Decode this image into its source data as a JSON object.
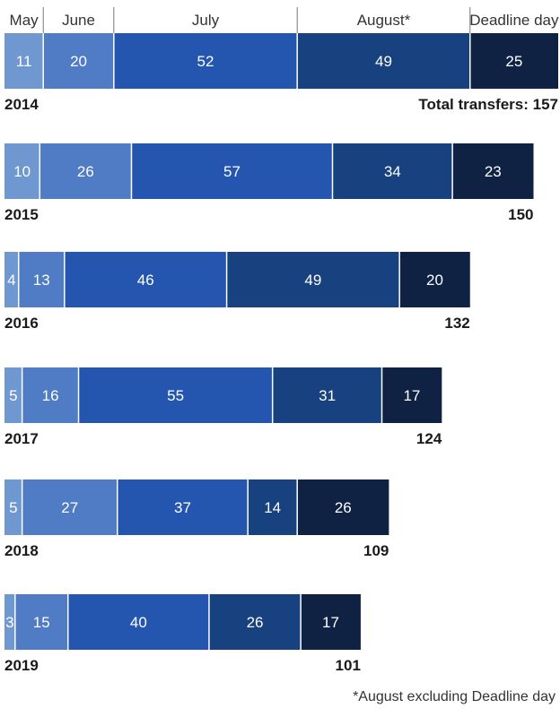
{
  "chart_data": {
    "type": "bar",
    "orientation": "horizontal",
    "stacked": true,
    "categories": [
      "2014",
      "2015",
      "2016",
      "2017",
      "2018",
      "2019"
    ],
    "series": [
      {
        "name": "May",
        "values": [
          11,
          10,
          4,
          5,
          5,
          3
        ],
        "color": "#6f98d1"
      },
      {
        "name": "June",
        "values": [
          20,
          26,
          13,
          16,
          27,
          15
        ],
        "color": "#4f7cc4"
      },
      {
        "name": "July",
        "values": [
          52,
          57,
          46,
          55,
          37,
          40
        ],
        "color": "#2456b0"
      },
      {
        "name": "August*",
        "values": [
          49,
          34,
          49,
          31,
          14,
          26
        ],
        "color": "#17417f"
      },
      {
        "name": "Deadline day",
        "values": [
          25,
          23,
          20,
          17,
          26,
          17
        ],
        "color": "#0f2244"
      }
    ],
    "totals": [
      "Total transfers: 157",
      "150",
      "132",
      "124",
      "109",
      "101"
    ],
    "footnote": "*August excluding Deadline day",
    "xlim": [
      0,
      157
    ]
  }
}
